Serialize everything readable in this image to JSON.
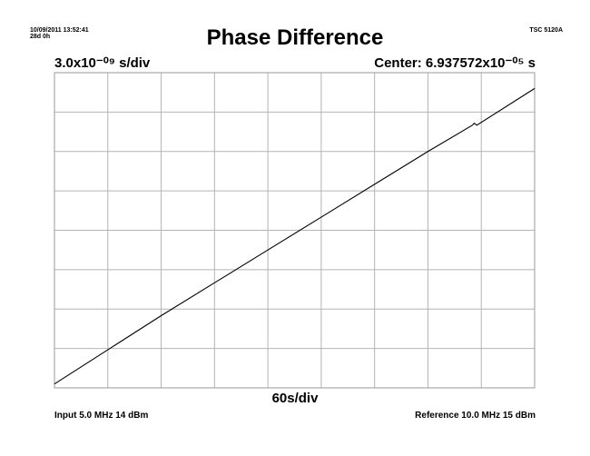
{
  "header": {
    "timestamp": "10/09/2011 13:52:41",
    "elapsed": "28d 0h",
    "instrument": "TSC 5120A"
  },
  "chart_data": {
    "type": "line",
    "title": "Phase Difference",
    "y_scale_label": "3.0x10⁻⁰⁹ s/div",
    "center_label": "Center: 6.937572x10⁻⁰⁵ s",
    "x_scale_label": "60s/div",
    "input_label": "Input 5.0 MHz 14 dBm",
    "reference_label": "Reference 10.0 MHz 15 dBm",
    "x_divisions": 9,
    "y_divisions": 8,
    "grid": true,
    "xlim": [
      0,
      540
    ],
    "ylim": [
      -12,
      12
    ],
    "series": [
      {
        "x": [
          0,
          60,
          120,
          180,
          240,
          300,
          360,
          420,
          470,
          472,
          475,
          540
        ],
        "y": [
          -11.7,
          -9.1,
          -6.5,
          -4.0,
          -1.5,
          1.0,
          3.5,
          6.0,
          8.0,
          8.15,
          8.0,
          10.8
        ]
      }
    ]
  }
}
